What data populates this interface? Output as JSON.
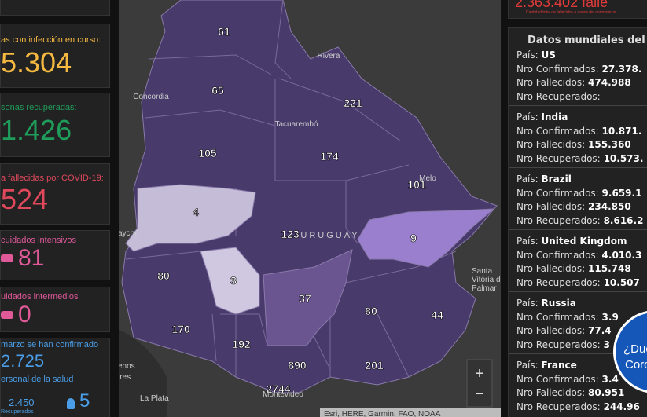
{
  "left_panel": {
    "cards": [
      {
        "label": "as con infección en curso:",
        "value": "5.304"
      },
      {
        "label": "sonas recuperadas:",
        "value": "1.426"
      },
      {
        "label": "a fallecidas por COVID-19:",
        "value": "524"
      },
      {
        "label": "cuidados intensivos",
        "value": "81"
      },
      {
        "label": "uidados intermedios",
        "value": "0"
      },
      {
        "label": "marzo se han confirmado",
        "value": "2.725",
        "sub_label": "ersonal de la salud",
        "sub_value": "2.450",
        "sub_caption": "Recuperados",
        "sub_value_2": "5"
      }
    ]
  },
  "map": {
    "department_values": [
      61,
      65,
      221,
      105,
      174,
      101,
      4,
      123,
      9,
      80,
      3,
      37,
      80,
      44,
      170,
      192,
      890,
      201,
      2744
    ],
    "place_names": [
      "Rivera",
      "Concordia",
      "Tacuarembó",
      "Melo",
      "URUGUAY",
      "aychú",
      "Santa",
      "Vitória do",
      "Palmar",
      "enos",
      "ires",
      "La Plata",
      "Montevideo"
    ],
    "attribution": "Esri, HERE, Garmin, FAO, NOAA",
    "zoom_in": "+",
    "zoom_out": "−"
  },
  "top_banner": {
    "value": "2.363.402 falle",
    "caption": "Cantidad total de fallecidos a causa del coronavirus"
  },
  "world_panel": {
    "title": "Datos mundiales del CO",
    "field_labels": {
      "country": "País:",
      "confirmed": "Nro Confirmados:",
      "deaths": "Nro Fallecidos:",
      "recovered": "Nro Recuperados:"
    },
    "countries": [
      {
        "name": "US",
        "confirmed": "27.378.",
        "deaths": "474.988"
      },
      {
        "name": "India",
        "confirmed": "10.871.",
        "deaths": "155.360",
        "recovered": "10.573."
      },
      {
        "name": "Brazil",
        "confirmed": "9.659.1",
        "deaths": "234.850",
        "recovered": "8.616.2"
      },
      {
        "name": "United Kingdom",
        "confirmed": "4.010.3",
        "deaths": "115.748",
        "recovered": "10.507"
      },
      {
        "name": "Russia",
        "confirmed": "3.9",
        "deaths": "77.4",
        "recovered": "3"
      },
      {
        "name": "France",
        "confirmed": "3.4",
        "deaths": "80.951",
        "recovered": "244.96"
      }
    ]
  },
  "help_button": {
    "line1": "¿Duc",
    "line2": "Coro"
  }
}
